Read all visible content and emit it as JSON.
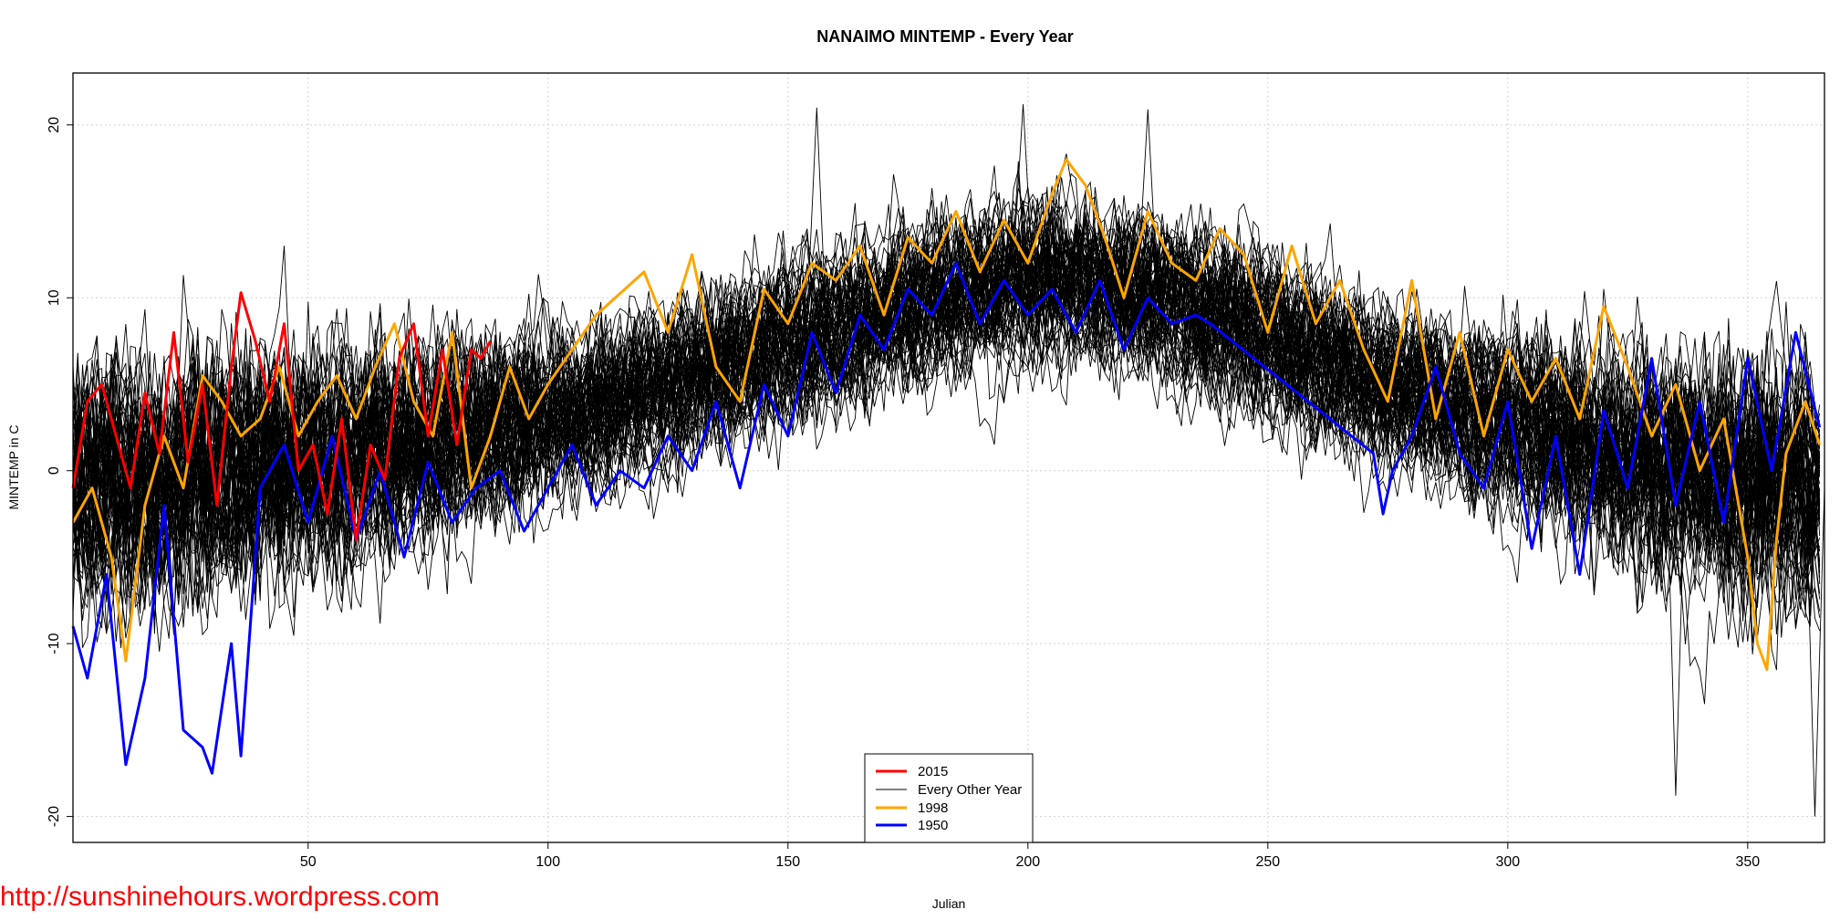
{
  "chart_data": {
    "type": "line",
    "title": "NANAIMO MINTEMP - Every Year",
    "xlabel": "Julian",
    "ylabel": "MINTEMP in C",
    "xlim": [
      1,
      366
    ],
    "ylim": [
      -21.5,
      23
    ],
    "x_ticks": [
      50,
      100,
      150,
      200,
      250,
      300,
      350
    ],
    "x_tick_labels": [
      "50",
      "100",
      "150",
      "200",
      "250",
      "300",
      "350"
    ],
    "y_ticks": [
      -20,
      -10,
      0,
      10,
      20
    ],
    "y_tick_labels": [
      "-20",
      "-10",
      "0",
      "10",
      "20"
    ],
    "grid": true,
    "legend_position": "bottom-center",
    "legend": [
      {
        "label": "2015",
        "color": "#ff0000",
        "width": 3
      },
      {
        "label": "Every Other Year",
        "color": "#000000",
        "width": 1
      },
      {
        "label": "1998",
        "color": "#ffa500",
        "width": 3
      },
      {
        "label": "1950",
        "color": "#0000ff",
        "width": 3
      }
    ],
    "background_years": {
      "label": "Every Other Year",
      "color": "#000000",
      "count": 70,
      "day_range": [
        1,
        365
      ],
      "annual_mean_profile": {
        "day": [
          1,
          30,
          60,
          90,
          120,
          150,
          180,
          200,
          215,
          240,
          270,
          300,
          330,
          365
        ],
        "mean": [
          -0.5,
          0.0,
          1.0,
          2.5,
          4.5,
          7.5,
          10.0,
          11.2,
          11.0,
          9.0,
          5.5,
          3.0,
          0.5,
          -1.0
        ]
      },
      "spread_sd": 3.0,
      "notable_extremes": [
        {
          "day": 156,
          "value": 21.0
        },
        {
          "day": 199,
          "value": 21.2
        },
        {
          "day": 225,
          "value": 20.9
        },
        {
          "day": 335,
          "value": -18.8
        },
        {
          "day": 364,
          "value": -20.0
        }
      ]
    },
    "series": [
      {
        "name": "2015",
        "color": "#ff0000",
        "width": 3,
        "x": [
          1,
          4,
          7,
          10,
          13,
          16,
          19,
          22,
          25,
          28,
          31,
          34,
          36,
          39,
          42,
          45,
          48,
          51,
          54,
          57,
          60,
          63,
          66,
          69,
          72,
          75,
          78,
          81,
          84,
          86,
          88
        ],
        "values": [
          -1.0,
          4.0,
          5.0,
          2.0,
          -1.0,
          4.5,
          1.0,
          8.0,
          0.5,
          5.0,
          -2.0,
          6.0,
          10.3,
          7.5,
          4.0,
          8.5,
          0.0,
          1.5,
          -2.5,
          3.0,
          -4.0,
          1.5,
          -0.5,
          6.5,
          8.5,
          2.0,
          7.0,
          1.5,
          7.0,
          6.5,
          7.5
        ]
      },
      {
        "name": "1998",
        "color": "#ffa500",
        "width": 3,
        "x": [
          1,
          5,
          9,
          12,
          16,
          20,
          24,
          28,
          32,
          36,
          40,
          44,
          48,
          52,
          56,
          60,
          64,
          68,
          72,
          76,
          80,
          84,
          88,
          92,
          96,
          100,
          110,
          120,
          125,
          130,
          135,
          140,
          145,
          150,
          155,
          160,
          165,
          170,
          175,
          180,
          185,
          190,
          195,
          200,
          205,
          208,
          212,
          216,
          220,
          225,
          230,
          235,
          240,
          245,
          250,
          255,
          260,
          265,
          270,
          275,
          280,
          285,
          290,
          295,
          300,
          305,
          310,
          315,
          320,
          325,
          330,
          335,
          340,
          345,
          350,
          352,
          354,
          356,
          358,
          362,
          365
        ],
        "values": [
          -3.0,
          -1.0,
          -5.0,
          -11.0,
          -2.0,
          2.0,
          -1.0,
          5.5,
          4.0,
          2.0,
          3.0,
          6.0,
          2.0,
          4.0,
          5.5,
          3.0,
          6.0,
          8.5,
          4.0,
          2.0,
          8.0,
          -1.0,
          2.0,
          6.0,
          3.0,
          5.0,
          9.0,
          11.5,
          8.0,
          12.5,
          6.0,
          4.0,
          10.5,
          8.5,
          12.0,
          11.0,
          13.0,
          9.0,
          13.5,
          12.0,
          15.0,
          11.5,
          14.5,
          12.0,
          16.0,
          18.0,
          16.5,
          13.5,
          10.0,
          15.0,
          12.0,
          11.0,
          14.0,
          12.5,
          8.0,
          13.0,
          8.5,
          11.0,
          7.0,
          4.0,
          11.0,
          3.0,
          8.0,
          2.0,
          7.0,
          4.0,
          6.5,
          3.0,
          9.5,
          6.0,
          2.0,
          5.0,
          0.0,
          3.0,
          -5.0,
          -10.0,
          -11.5,
          -4.0,
          1.0,
          4.0,
          1.5
        ]
      },
      {
        "name": "1950",
        "color": "#0000ff",
        "width": 3,
        "x": [
          1,
          4,
          8,
          12,
          16,
          20,
          24,
          28,
          30,
          34,
          36,
          40,
          45,
          50,
          55,
          60,
          65,
          70,
          75,
          80,
          85,
          90,
          95,
          100,
          105,
          110,
          115,
          120,
          125,
          130,
          135,
          140,
          145,
          150,
          155,
          160,
          165,
          170,
          175,
          180,
          185,
          190,
          195,
          200,
          205,
          210,
          215,
          220,
          225,
          230,
          235,
          238,
          272,
          274,
          276,
          280,
          285,
          290,
          295,
          300,
          305,
          310,
          315,
          320,
          325,
          330,
          335,
          340,
          345,
          350,
          355,
          360,
          365
        ],
        "values": [
          -9.0,
          -12.0,
          -6.0,
          -17.0,
          -12.0,
          -2.0,
          -15.0,
          -16.0,
          -17.5,
          -10.0,
          -16.5,
          -1.0,
          1.5,
          -3.0,
          2.0,
          -4.0,
          0.0,
          -5.0,
          0.5,
          -3.0,
          -1.0,
          0.0,
          -3.5,
          -1.0,
          1.5,
          -2.0,
          0.0,
          -1.0,
          2.0,
          0.0,
          4.0,
          -1.0,
          5.0,
          2.0,
          8.0,
          4.5,
          9.0,
          7.0,
          10.5,
          9.0,
          12.0,
          8.5,
          11.0,
          9.0,
          10.5,
          8.0,
          11.0,
          7.0,
          10.0,
          8.5,
          9.0,
          8.5,
          1.0,
          -2.5,
          0.0,
          2.0,
          6.0,
          1.0,
          -1.0,
          4.0,
          -4.5,
          2.0,
          -6.0,
          3.5,
          -1.0,
          6.5,
          -2.0,
          4.0,
          -3.0,
          6.5,
          0.0,
          8.0,
          2.5
        ]
      }
    ]
  },
  "watermark": "http://sunshinehours.wordpress.com"
}
